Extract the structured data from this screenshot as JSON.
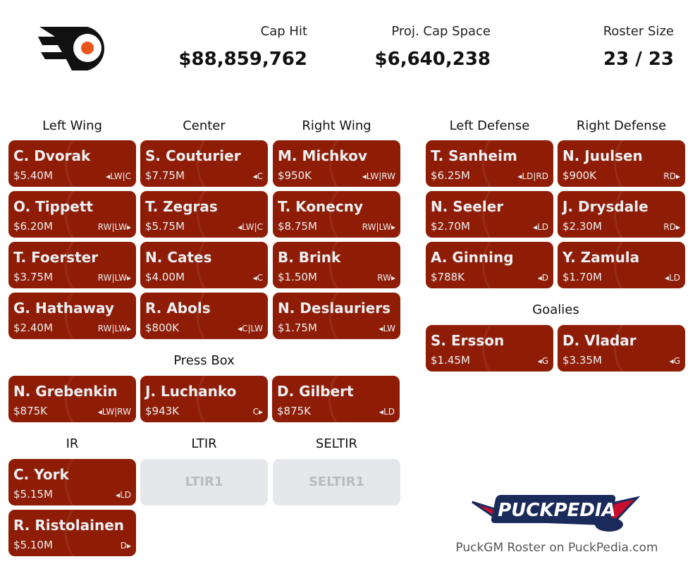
{
  "header": {
    "cap_hit_label": "Cap Hit",
    "cap_hit": "$88,859,762",
    "cap_space_label": "Proj. Cap Space",
    "cap_space": "$6,640,238",
    "roster_label": "Roster Size",
    "roster": "23 / 23"
  },
  "sections": {
    "lw": "Left Wing",
    "c": "Center",
    "rw": "Right Wing",
    "ld": "Left Defense",
    "rd": "Right Defense",
    "goalies": "Goalies",
    "press": "Press Box",
    "ir": "IR",
    "ltir": "LTIR",
    "seltir": "SELTIR"
  },
  "colors": {
    "card": "#8f1d06",
    "empty": "#e6e7ea"
  },
  "players": [
    {
      "name": "C. Dvorak",
      "cap": "$5.40M",
      "pos": "◂LW|C",
      "slot": "lw0"
    },
    {
      "name": "O. Tippett",
      "cap": "$6.20M",
      "pos": "RW|LW▸",
      "slot": "lw1"
    },
    {
      "name": "T. Foerster",
      "cap": "$3.75M",
      "pos": "RW|LW▸",
      "slot": "lw2"
    },
    {
      "name": "G. Hathaway",
      "cap": "$2.40M",
      "pos": "RW|LW▸",
      "slot": "lw3"
    },
    {
      "name": "S. Couturier",
      "cap": "$7.75M",
      "pos": "◂C",
      "slot": "c0"
    },
    {
      "name": "T. Zegras",
      "cap": "$5.75M",
      "pos": "◂LW|C",
      "slot": "c1"
    },
    {
      "name": "N. Cates",
      "cap": "$4.00M",
      "pos": "◂C",
      "slot": "c2"
    },
    {
      "name": "R. Abols",
      "cap": "$800K",
      "pos": "◂C|LW",
      "slot": "c3"
    },
    {
      "name": "M. Michkov",
      "cap": "$950K",
      "pos": "◂LW|RW",
      "slot": "rw0"
    },
    {
      "name": "T. Konecny",
      "cap": "$8.75M",
      "pos": "RW|LW▸",
      "slot": "rw1"
    },
    {
      "name": "B. Brink",
      "cap": "$1.50M",
      "pos": "RW▸",
      "slot": "rw2"
    },
    {
      "name": "N. Deslauriers",
      "cap": "$1.75M",
      "pos": "◂LW",
      "slot": "rw3"
    },
    {
      "name": "T. Sanheim",
      "cap": "$6.25M",
      "pos": "◂LD|RD",
      "slot": "ld0"
    },
    {
      "name": "N. Seeler",
      "cap": "$2.70M",
      "pos": "◂LD",
      "slot": "ld1"
    },
    {
      "name": "A. Ginning",
      "cap": "$788K",
      "pos": "◂D",
      "slot": "ld2"
    },
    {
      "name": "N. Juulsen",
      "cap": "$900K",
      "pos": "RD▸",
      "slot": "rd0"
    },
    {
      "name": "J. Drysdale",
      "cap": "$2.30M",
      "pos": "RD▸",
      "slot": "rd1"
    },
    {
      "name": "Y. Zamula",
      "cap": "$1.70M",
      "pos": "◂LD",
      "slot": "rd2"
    },
    {
      "name": "S. Ersson",
      "cap": "$1.45M",
      "pos": "◂G",
      "slot": "g0"
    },
    {
      "name": "D. Vladar",
      "cap": "$3.35M",
      "pos": "◂G",
      "slot": "g1"
    },
    {
      "name": "N. Grebenkin",
      "cap": "$875K",
      "pos": "◂LW|RW",
      "slot": "pb0"
    },
    {
      "name": "J. Luchanko",
      "cap": "$943K",
      "pos": "C▸",
      "slot": "pb1"
    },
    {
      "name": "D. Gilbert",
      "cap": "$875K",
      "pos": "◂LD",
      "slot": "pb2"
    },
    {
      "name": "C. York",
      "cap": "$5.15M",
      "pos": "◂LD",
      "slot": "ir0"
    },
    {
      "name": "R. Ristolainen",
      "cap": "$5.10M",
      "pos": "D▸",
      "slot": "ir1"
    }
  ],
  "empty_slots": [
    {
      "label": "LTIR1",
      "slot": "ltir0"
    },
    {
      "label": "SELTIR1",
      "slot": "seltir0"
    }
  ],
  "footer": "PuckGM Roster on PuckPedia.com",
  "puckpedia_logo_text": "PuckPedia"
}
